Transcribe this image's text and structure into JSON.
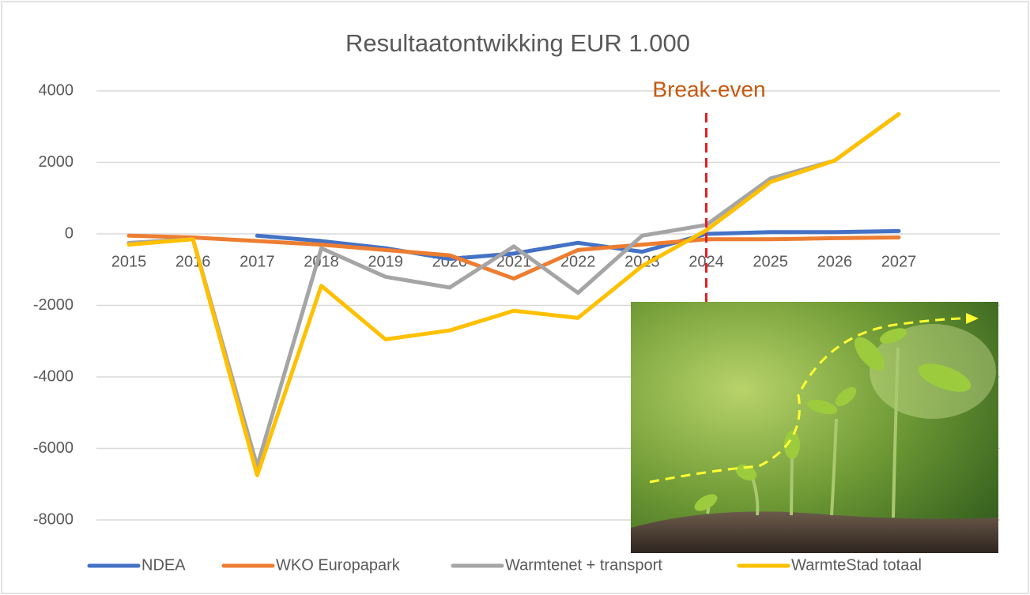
{
  "chart_data": {
    "type": "line",
    "title": "Resultaatontwikking EUR 1.000",
    "annotation": "Break-even",
    "categories": [
      "2015",
      "2016",
      "2017",
      "2018",
      "2019",
      "2020",
      "2021",
      "2022",
      "2023",
      "2024",
      "2025",
      "2026",
      "2027"
    ],
    "series": [
      {
        "name": "NDEA",
        "color": "#4472c4",
        "values": [
          null,
          null,
          -50,
          -200,
          -400,
          -700,
          -550,
          -250,
          -500,
          0,
          50,
          50,
          80
        ]
      },
      {
        "name": "WKO Europapark",
        "color": "#ed7d31",
        "values": [
          -50,
          -100,
          -200,
          -300,
          -450,
          -600,
          -1250,
          -450,
          -300,
          -150,
          -150,
          -120,
          -100
        ]
      },
      {
        "name": "Warmtenet + transport",
        "color": "#a5a5a5",
        "values": [
          -250,
          -150,
          -6500,
          -400,
          -1200,
          -1500,
          -350,
          -1650,
          -50,
          250,
          1550,
          2050,
          3350
        ]
      },
      {
        "name": "WarmteStad totaal",
        "color": "#ffc000",
        "values": [
          -300,
          -150,
          -6750,
          -1450,
          -2950,
          -2700,
          -2150,
          -2350,
          -900,
          100,
          1450,
          2050,
          3350
        ]
      }
    ],
    "ylim": [
      -8000,
      4000
    ],
    "yticks": [
      -8000,
      -6000,
      -4000,
      -2000,
      0,
      2000,
      4000
    ],
    "grid": true,
    "legend": "bottom"
  }
}
